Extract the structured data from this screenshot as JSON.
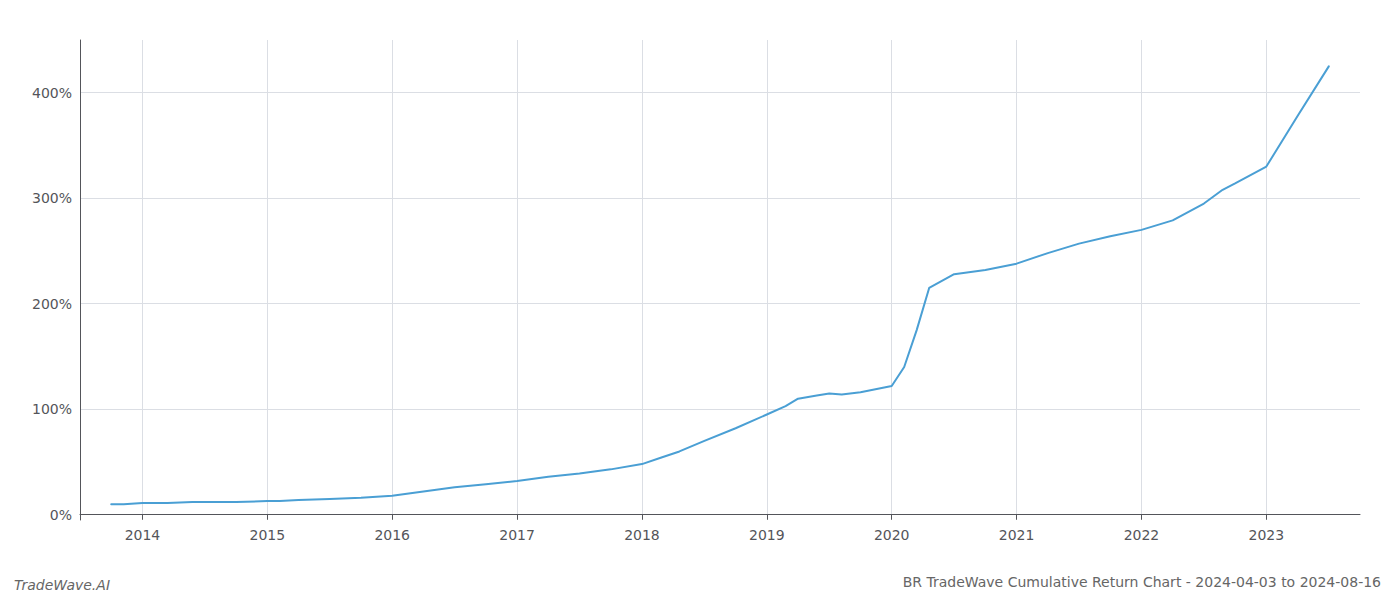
{
  "chart_data": {
    "type": "line",
    "title": "BR TradeWave Cumulative Return Chart - 2024-04-03 to 2024-08-16",
    "annotations": [
      "TradeWave.AI"
    ],
    "color": "#4a9fd4",
    "grid": true,
    "x": [
      2013.75,
      2013.85,
      2014.0,
      2014.1,
      2014.2,
      2014.4,
      2014.6,
      2014.75,
      2015.0,
      2015.1,
      2015.25,
      2015.5,
      2015.75,
      2016.0,
      2016.25,
      2016.5,
      2016.75,
      2017.0,
      2017.25,
      2017.5,
      2017.75,
      2018.0,
      2018.15,
      2018.3,
      2018.5,
      2018.75,
      2019.0,
      2019.15,
      2019.25,
      2019.4,
      2019.5,
      2019.6,
      2019.75,
      2020.0,
      2020.1,
      2020.2,
      2020.3,
      2020.5,
      2020.75,
      2021.0,
      2021.25,
      2021.5,
      2021.75,
      2022.0,
      2022.25,
      2022.5,
      2022.65,
      2022.75,
      2023.0,
      2023.25,
      2023.5
    ],
    "values": [
      10,
      10,
      11,
      11,
      11,
      12,
      12,
      12,
      13,
      13,
      14,
      15,
      16,
      18,
      22,
      26,
      29,
      32,
      36,
      39,
      43,
      48,
      54,
      60,
      70,
      82,
      95,
      103,
      110,
      113,
      115,
      114,
      116,
      122,
      140,
      175,
      215,
      228,
      232,
      238,
      248,
      257,
      264,
      270,
      279,
      295,
      308,
      314,
      330,
      378,
      425
    ],
    "xlim": [
      2013.5,
      2023.75
    ],
    "ylim": [
      -5,
      450
    ],
    "xticks": [
      2014,
      2015,
      2016,
      2017,
      2018,
      2019,
      2020,
      2021,
      2022,
      2023
    ],
    "yticks": [
      {
        "value": 0,
        "label": "0%"
      },
      {
        "value": 100,
        "label": "100%"
      },
      {
        "value": 200,
        "label": "200%"
      },
      {
        "value": 300,
        "label": "300%"
      },
      {
        "value": 400,
        "label": "400%"
      }
    ]
  }
}
